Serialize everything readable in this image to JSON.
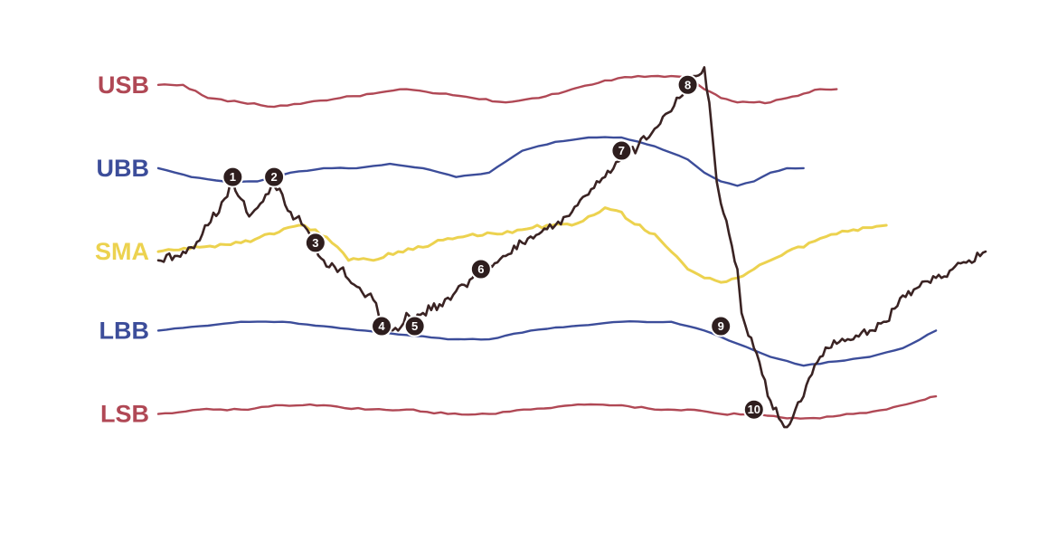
{
  "chart_data": {
    "type": "line",
    "title": "",
    "xlabel": "",
    "ylabel": "",
    "grid": false,
    "legend": "left",
    "colors": {
      "USB": "#b04855",
      "UBB": "#3c4d9a",
      "SMA": "#ecd24f",
      "LBB": "#3c4d9a",
      "LSB": "#b04855",
      "price": "#3a2323",
      "marker": "#2e1e1e"
    },
    "x_range": [
      0,
      100
    ],
    "y_range": [
      0,
      100
    ],
    "series": [
      {
        "name": "USB",
        "color": "#b04855",
        "points": [
          [
            0,
            92
          ],
          [
            3,
            92
          ],
          [
            6,
            89
          ],
          [
            10,
            88
          ],
          [
            14,
            87
          ],
          [
            18,
            88
          ],
          [
            22,
            89
          ],
          [
            26,
            90
          ],
          [
            30,
            91
          ],
          [
            34,
            90
          ],
          [
            38,
            89
          ],
          [
            42,
            88
          ],
          [
            46,
            89
          ],
          [
            50,
            91
          ],
          [
            54,
            93
          ],
          [
            58,
            94
          ],
          [
            62,
            94
          ],
          [
            64,
            94
          ],
          [
            66,
            91
          ],
          [
            68,
            89
          ],
          [
            70,
            88
          ],
          [
            72,
            88
          ],
          [
            74,
            88
          ],
          [
            76,
            89
          ],
          [
            78,
            90
          ],
          [
            80,
            91
          ],
          [
            82,
            91
          ]
        ]
      },
      {
        "name": "UBB",
        "color": "#3c4d9a",
        "points": [
          [
            0,
            73
          ],
          [
            4,
            71
          ],
          [
            8,
            70
          ],
          [
            12,
            70
          ],
          [
            16,
            72
          ],
          [
            20,
            73
          ],
          [
            24,
            73
          ],
          [
            28,
            74
          ],
          [
            32,
            73
          ],
          [
            36,
            71
          ],
          [
            40,
            72
          ],
          [
            44,
            77
          ],
          [
            48,
            79
          ],
          [
            52,
            80
          ],
          [
            56,
            80
          ],
          [
            60,
            78
          ],
          [
            64,
            75
          ],
          [
            66,
            72
          ],
          [
            68,
            70
          ],
          [
            70,
            69
          ],
          [
            72,
            70
          ],
          [
            74,
            72
          ],
          [
            76,
            73
          ],
          [
            78,
            73
          ]
        ]
      },
      {
        "name": "SMA",
        "color": "#ecd24f",
        "points": [
          [
            0,
            54
          ],
          [
            5,
            55
          ],
          [
            10,
            56
          ],
          [
            14,
            58
          ],
          [
            17,
            60
          ],
          [
            19,
            59
          ],
          [
            21,
            56
          ],
          [
            23,
            52
          ],
          [
            26,
            52
          ],
          [
            29,
            54
          ],
          [
            32,
            55
          ],
          [
            35,
            57
          ],
          [
            38,
            58
          ],
          [
            41,
            58
          ],
          [
            44,
            59
          ],
          [
            47,
            60
          ],
          [
            50,
            60
          ],
          [
            52,
            62
          ],
          [
            54,
            64
          ],
          [
            56,
            63
          ],
          [
            57,
            61
          ],
          [
            60,
            58
          ],
          [
            62,
            54
          ],
          [
            64,
            50
          ],
          [
            66,
            48
          ],
          [
            68,
            47
          ],
          [
            70,
            48
          ],
          [
            72,
            50
          ],
          [
            74,
            52
          ],
          [
            76,
            54
          ],
          [
            78,
            55
          ],
          [
            80,
            57
          ],
          [
            82,
            58
          ],
          [
            84,
            59
          ],
          [
            88,
            60
          ]
        ]
      },
      {
        "name": "LBB",
        "color": "#3c4d9a",
        "points": [
          [
            0,
            36
          ],
          [
            5,
            37
          ],
          [
            10,
            38
          ],
          [
            15,
            38
          ],
          [
            20,
            37
          ],
          [
            25,
            36
          ],
          [
            30,
            35
          ],
          [
            35,
            34
          ],
          [
            40,
            34
          ],
          [
            45,
            36
          ],
          [
            50,
            37
          ],
          [
            56,
            38
          ],
          [
            62,
            38
          ],
          [
            66,
            36
          ],
          [
            70,
            33
          ],
          [
            74,
            30
          ],
          [
            78,
            28
          ],
          [
            82,
            29
          ],
          [
            86,
            30
          ],
          [
            90,
            32
          ],
          [
            94,
            36
          ]
        ]
      },
      {
        "name": "LSB",
        "color": "#b04855",
        "points": [
          [
            0,
            17
          ],
          [
            5,
            18
          ],
          [
            10,
            18
          ],
          [
            15,
            19
          ],
          [
            20,
            19
          ],
          [
            25,
            18
          ],
          [
            30,
            18
          ],
          [
            35,
            17
          ],
          [
            40,
            17
          ],
          [
            45,
            18
          ],
          [
            50,
            19
          ],
          [
            56,
            19
          ],
          [
            60,
            18
          ],
          [
            64,
            18
          ],
          [
            68,
            17
          ],
          [
            72,
            17
          ],
          [
            76,
            16
          ],
          [
            80,
            16
          ],
          [
            84,
            17
          ],
          [
            88,
            18
          ],
          [
            92,
            20
          ],
          [
            94,
            21
          ]
        ]
      },
      {
        "name": "price",
        "color": "#3a2323",
        "points": [
          [
            0,
            52
          ],
          [
            2,
            53
          ],
          [
            4,
            55
          ],
          [
            6,
            60
          ],
          [
            8,
            66
          ],
          [
            9,
            70
          ],
          [
            10,
            66
          ],
          [
            11,
            62
          ],
          [
            12,
            64
          ],
          [
            13,
            67
          ],
          [
            14,
            69
          ],
          [
            15,
            67
          ],
          [
            16,
            63
          ],
          [
            18,
            59
          ],
          [
            19,
            55
          ],
          [
            20,
            52
          ],
          [
            22,
            50
          ],
          [
            24,
            46
          ],
          [
            26,
            43
          ],
          [
            27,
            38
          ],
          [
            29,
            36
          ],
          [
            30,
            40
          ],
          [
            31,
            38
          ],
          [
            32,
            40
          ],
          [
            34,
            42
          ],
          [
            36,
            45
          ],
          [
            38,
            48
          ],
          [
            40,
            51
          ],
          [
            42,
            53
          ],
          [
            44,
            56
          ],
          [
            46,
            58
          ],
          [
            48,
            60
          ],
          [
            50,
            63
          ],
          [
            52,
            67
          ],
          [
            54,
            71
          ],
          [
            56,
            75
          ],
          [
            58,
            78
          ],
          [
            60,
            82
          ],
          [
            62,
            86
          ],
          [
            63,
            89
          ],
          [
            64,
            91
          ],
          [
            65,
            94
          ],
          [
            66,
            96
          ],
          [
            66.6,
            88
          ],
          [
            67,
            80
          ],
          [
            67.5,
            70
          ],
          [
            68,
            65
          ],
          [
            69,
            58
          ],
          [
            70,
            50
          ],
          [
            70.5,
            40
          ],
          [
            71,
            37
          ],
          [
            72,
            32
          ],
          [
            73,
            26
          ],
          [
            74,
            20
          ],
          [
            75,
            16
          ],
          [
            76,
            14
          ],
          [
            77,
            18
          ],
          [
            78,
            21
          ],
          [
            79,
            26
          ],
          [
            80,
            30
          ],
          [
            81,
            32
          ],
          [
            82,
            33
          ],
          [
            84,
            34
          ],
          [
            86,
            36
          ],
          [
            88,
            38
          ],
          [
            89,
            41
          ],
          [
            90,
            44
          ],
          [
            92,
            46
          ],
          [
            94,
            48
          ],
          [
            96,
            50
          ],
          [
            98,
            52
          ],
          [
            100,
            54
          ]
        ]
      }
    ],
    "markers": [
      {
        "label": "1",
        "x": 9,
        "y": 71
      },
      {
        "label": "2",
        "x": 14,
        "y": 71
      },
      {
        "label": "3",
        "x": 19,
        "y": 56
      },
      {
        "label": "4",
        "x": 27,
        "y": 37
      },
      {
        "label": "5",
        "x": 31,
        "y": 37
      },
      {
        "label": "6",
        "x": 39,
        "y": 50
      },
      {
        "label": "7",
        "x": 56,
        "y": 77
      },
      {
        "label": "8",
        "x": 64,
        "y": 92
      },
      {
        "label": "9",
        "x": 68,
        "y": 37
      },
      {
        "label": "10",
        "x": 72,
        "y": 18
      }
    ],
    "band_labels": [
      {
        "text": "USB",
        "series": "USB"
      },
      {
        "text": "UBB",
        "series": "UBB"
      },
      {
        "text": "SMA",
        "series": "SMA"
      },
      {
        "text": "LBB",
        "series": "LBB"
      },
      {
        "text": "LSB",
        "series": "LSB"
      }
    ]
  }
}
